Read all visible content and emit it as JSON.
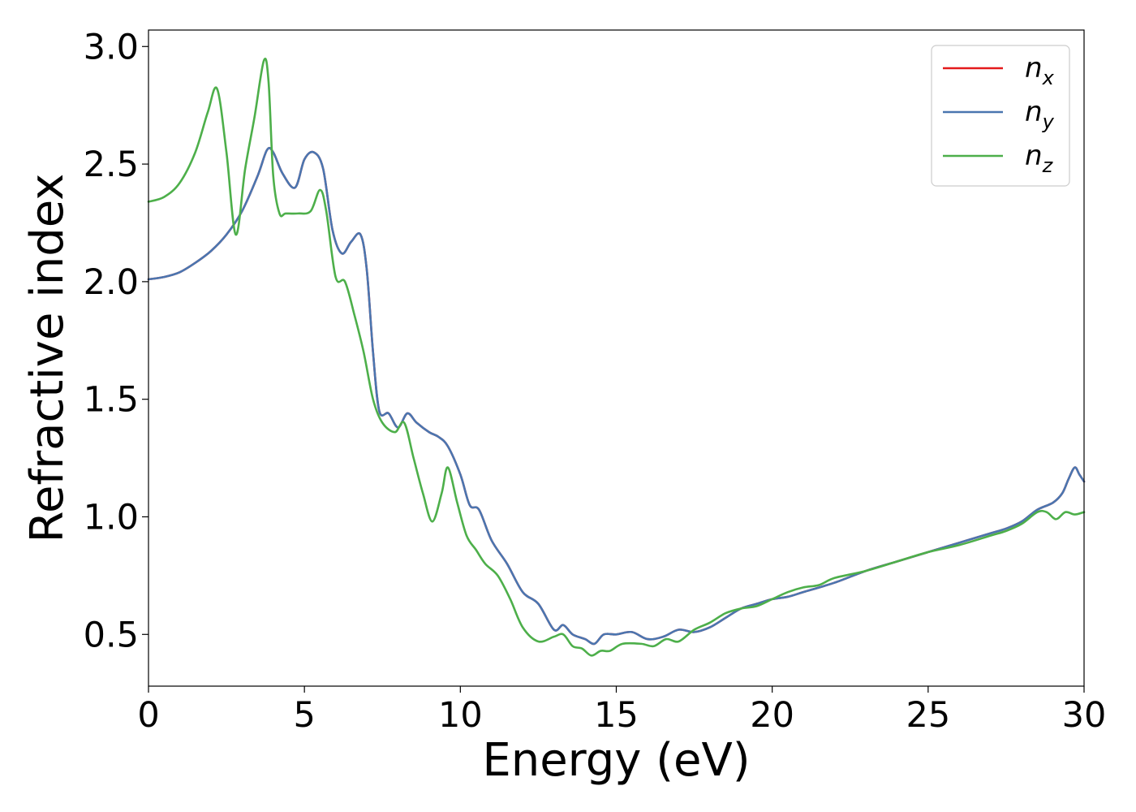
{
  "chart_data": {
    "type": "line",
    "title": "",
    "xlabel": "Energy (eV)",
    "ylabel": "Refractive index",
    "xlim": [
      0,
      30
    ],
    "ylim": [
      0.28,
      3.07
    ],
    "xticks": [
      0,
      5,
      10,
      15,
      20,
      25,
      30
    ],
    "yticks": [
      0.5,
      1.0,
      1.5,
      2.0,
      2.5,
      3.0
    ],
    "xtick_labels": [
      "0",
      "5",
      "10",
      "15",
      "20",
      "25",
      "30"
    ],
    "ytick_labels": [
      "0.5",
      "1.0",
      "1.5",
      "2.0",
      "2.5",
      "3.0"
    ],
    "grid": false,
    "legend_position": "top-right",
    "series": [
      {
        "name": "n_x",
        "legend_base": "n",
        "legend_sub": "x",
        "color": "#e41a1c",
        "x": [
          0,
          0.5,
          1,
          1.5,
          2,
          2.5,
          3,
          3.5,
          3.8,
          4.0,
          4.3,
          4.7,
          5.0,
          5.3,
          5.6,
          5.9,
          6.2,
          6.5,
          6.8,
          7.0,
          7.2,
          7.4,
          7.7,
          8.0,
          8.3,
          8.6,
          9.0,
          9.3,
          9.6,
          10.0,
          10.3,
          10.6,
          11.0,
          11.5,
          12.0,
          12.5,
          13.0,
          13.3,
          13.6,
          14.0,
          14.3,
          14.6,
          15.0,
          15.5,
          16.0,
          16.5,
          17.0,
          17.5,
          18.0,
          18.5,
          19.0,
          19.5,
          20.0,
          20.5,
          21.0,
          22.0,
          23.0,
          24.0,
          25.0,
          26.0,
          27.0,
          27.5,
          28.0,
          28.5,
          29.0,
          29.3,
          29.5,
          29.7,
          29.85,
          30.0
        ],
        "y": [
          2.01,
          2.02,
          2.04,
          2.08,
          2.13,
          2.2,
          2.3,
          2.45,
          2.56,
          2.55,
          2.46,
          2.4,
          2.52,
          2.55,
          2.48,
          2.22,
          2.12,
          2.17,
          2.2,
          2.05,
          1.7,
          1.45,
          1.44,
          1.38,
          1.44,
          1.4,
          1.36,
          1.34,
          1.3,
          1.18,
          1.05,
          1.03,
          0.9,
          0.8,
          0.68,
          0.63,
          0.52,
          0.54,
          0.5,
          0.48,
          0.46,
          0.5,
          0.5,
          0.51,
          0.48,
          0.49,
          0.52,
          0.51,
          0.53,
          0.57,
          0.61,
          0.63,
          0.65,
          0.66,
          0.68,
          0.72,
          0.77,
          0.81,
          0.85,
          0.89,
          0.93,
          0.95,
          0.98,
          1.03,
          1.06,
          1.1,
          1.16,
          1.21,
          1.18,
          1.15
        ]
      },
      {
        "name": "n_y",
        "legend_base": "n",
        "legend_sub": "y",
        "color": "#4a76b0",
        "x": [
          0,
          0.5,
          1,
          1.5,
          2,
          2.5,
          3,
          3.5,
          3.8,
          4.0,
          4.3,
          4.7,
          5.0,
          5.3,
          5.6,
          5.9,
          6.2,
          6.5,
          6.8,
          7.0,
          7.2,
          7.4,
          7.7,
          8.0,
          8.3,
          8.6,
          9.0,
          9.3,
          9.6,
          10.0,
          10.3,
          10.6,
          11.0,
          11.5,
          12.0,
          12.5,
          13.0,
          13.3,
          13.6,
          14.0,
          14.3,
          14.6,
          15.0,
          15.5,
          16.0,
          16.5,
          17.0,
          17.5,
          18.0,
          18.5,
          19.0,
          19.5,
          20.0,
          20.5,
          21.0,
          22.0,
          23.0,
          24.0,
          25.0,
          26.0,
          27.0,
          27.5,
          28.0,
          28.5,
          29.0,
          29.3,
          29.5,
          29.7,
          29.85,
          30.0
        ],
        "y": [
          2.01,
          2.02,
          2.04,
          2.08,
          2.13,
          2.2,
          2.3,
          2.45,
          2.56,
          2.55,
          2.46,
          2.4,
          2.52,
          2.55,
          2.48,
          2.22,
          2.12,
          2.17,
          2.2,
          2.05,
          1.7,
          1.45,
          1.44,
          1.38,
          1.44,
          1.4,
          1.36,
          1.34,
          1.3,
          1.18,
          1.05,
          1.03,
          0.9,
          0.8,
          0.68,
          0.63,
          0.52,
          0.54,
          0.5,
          0.48,
          0.46,
          0.5,
          0.5,
          0.51,
          0.48,
          0.49,
          0.52,
          0.51,
          0.53,
          0.57,
          0.61,
          0.63,
          0.65,
          0.66,
          0.68,
          0.72,
          0.77,
          0.81,
          0.85,
          0.89,
          0.93,
          0.95,
          0.98,
          1.03,
          1.06,
          1.1,
          1.16,
          1.21,
          1.18,
          1.15
        ]
      },
      {
        "name": "n_z",
        "legend_base": "n",
        "legend_sub": "z",
        "color": "#4daf4a",
        "x": [
          0,
          0.5,
          1,
          1.5,
          1.9,
          2.2,
          2.5,
          2.8,
          3.1,
          3.4,
          3.7,
          3.85,
          4.0,
          4.2,
          4.4,
          4.8,
          5.2,
          5.5,
          5.7,
          6.0,
          6.3,
          6.6,
          6.9,
          7.2,
          7.5,
          7.9,
          8.2,
          8.5,
          8.8,
          9.1,
          9.4,
          9.6,
          9.9,
          10.2,
          10.5,
          10.8,
          11.2,
          11.6,
          12.0,
          12.5,
          13.0,
          13.3,
          13.6,
          13.9,
          14.2,
          14.5,
          14.8,
          15.2,
          15.8,
          16.2,
          16.6,
          17.0,
          17.5,
          18.0,
          18.5,
          19.0,
          19.5,
          20.0,
          20.5,
          21.0,
          21.5,
          22.0,
          23.0,
          24.0,
          25.0,
          26.0,
          27.0,
          27.5,
          28.0,
          28.5,
          28.8,
          29.1,
          29.4,
          29.7,
          30.0
        ],
        "y": [
          2.34,
          2.36,
          2.42,
          2.55,
          2.72,
          2.82,
          2.55,
          2.2,
          2.48,
          2.7,
          2.94,
          2.85,
          2.45,
          2.29,
          2.29,
          2.29,
          2.3,
          2.39,
          2.3,
          2.02,
          2.0,
          1.86,
          1.7,
          1.5,
          1.4,
          1.36,
          1.4,
          1.25,
          1.1,
          0.98,
          1.1,
          1.21,
          1.06,
          0.92,
          0.86,
          0.8,
          0.75,
          0.65,
          0.53,
          0.47,
          0.49,
          0.5,
          0.45,
          0.44,
          0.41,
          0.43,
          0.43,
          0.46,
          0.46,
          0.45,
          0.48,
          0.47,
          0.52,
          0.55,
          0.59,
          0.61,
          0.62,
          0.65,
          0.68,
          0.7,
          0.71,
          0.74,
          0.77,
          0.81,
          0.85,
          0.88,
          0.92,
          0.94,
          0.97,
          1.02,
          1.02,
          0.99,
          1.02,
          1.01,
          1.02
        ]
      }
    ]
  }
}
